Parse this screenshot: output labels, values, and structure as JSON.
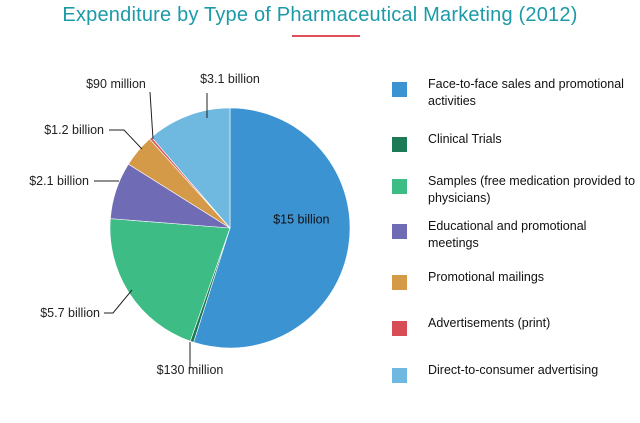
{
  "title": "Expenditure by Type of Pharmaceutical Marketing (2012)",
  "accent": "#e0505a",
  "chart_data": {
    "type": "pie",
    "title": "Expenditure by Type of Pharmaceutical Marketing (2012)",
    "legend_position": "right",
    "slices": [
      {
        "name": "Face-to-face sales and promotional activities",
        "value": 15000,
        "label": "$15 billion",
        "color": "#3b93d2"
      },
      {
        "name": "Clinical Trials",
        "value": 130,
        "label": "$130 million",
        "color": "#1d7a56"
      },
      {
        "name": "Samples (free medication provided to physicians)",
        "value": 5700,
        "label": "$5.7 billion",
        "color": "#3dbc86"
      },
      {
        "name": "Educational and promotional meetings",
        "value": 2100,
        "label": "$2.1 billion",
        "color": "#6f6bb5"
      },
      {
        "name": "Promotional mailings",
        "value": 1200,
        "label": "$1.2 billion",
        "color": "#d49a47"
      },
      {
        "name": "Advertisements (print)",
        "value": 90,
        "label": "$90 million",
        "color": "#d84d55"
      },
      {
        "name": "Direct-to-consumer advertising",
        "value": 3100,
        "label": "$3.1 billion",
        "color": "#6fb8e0"
      }
    ]
  }
}
